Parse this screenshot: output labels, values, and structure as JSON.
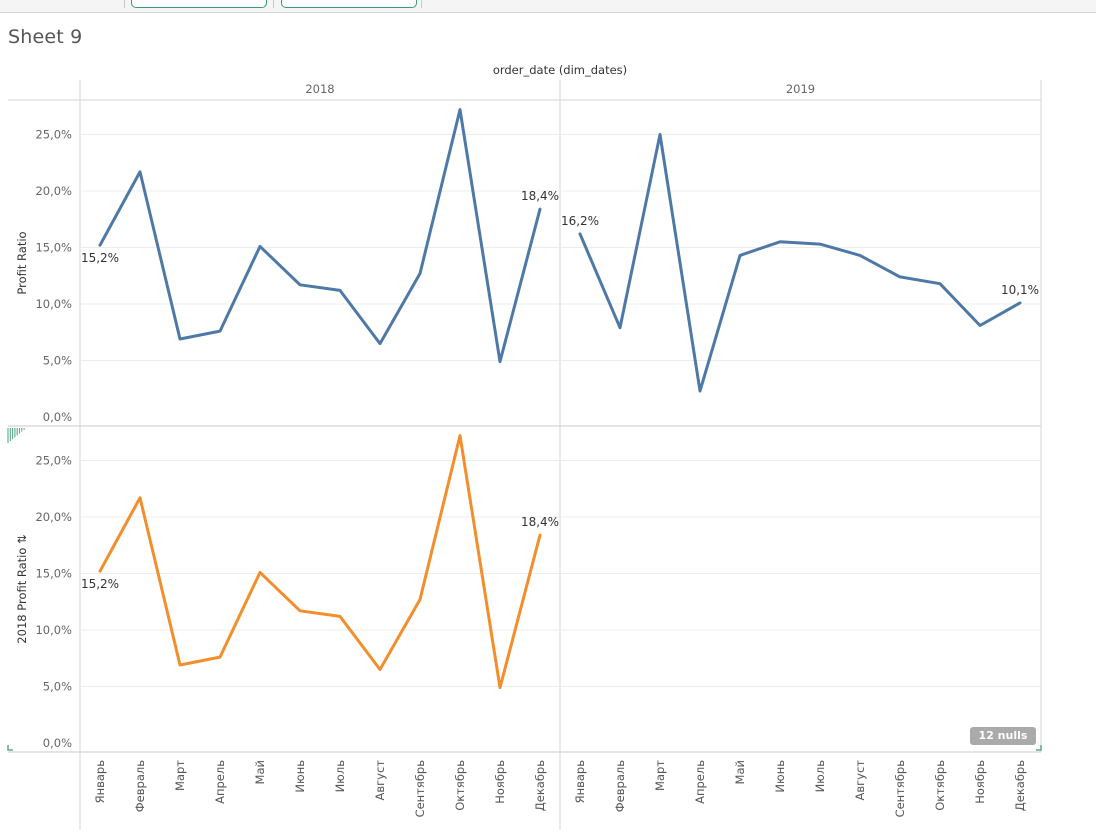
{
  "sheet_title": "Sheet 9",
  "nulls_label": "12 nulls",
  "chart_data": {
    "type": "line",
    "column_header": "order_date (dim_dates)",
    "years": [
      "2018",
      "2019"
    ],
    "months": [
      "Январь",
      "Февраль",
      "Март",
      "Апрель",
      "Май",
      "Июнь",
      "Июль",
      "Август",
      "Сентябрь",
      "Октябрь",
      "Ноябрь",
      "Декабрь"
    ],
    "ylim": [
      0,
      0.28
    ],
    "yticks": [
      0,
      0.05,
      0.1,
      0.15,
      0.2,
      0.25
    ],
    "ytick_labels": [
      "0,0%",
      "5,0%",
      "10,0%",
      "15,0%",
      "20,0%",
      "25,0%"
    ],
    "grid": true,
    "panes": [
      {
        "ylabel": "Profit Ratio",
        "ylabel_icon": "",
        "color": "#4e79a7",
        "series": {
          "2018": [
            0.152,
            0.217,
            0.069,
            0.076,
            0.151,
            0.117,
            0.112,
            0.065,
            0.127,
            0.272,
            0.049,
            0.184
          ],
          "2019": [
            0.162,
            0.079,
            0.25,
            0.023,
            0.143,
            0.155,
            0.153,
            0.143,
            0.124,
            0.118,
            0.081,
            0.101
          ]
        },
        "labels": [
          {
            "year": "2018",
            "month_index": 0,
            "text": "15,2%",
            "pos": "below"
          },
          {
            "year": "2018",
            "month_index": 11,
            "text": "18,4%",
            "pos": "above"
          },
          {
            "year": "2019",
            "month_index": 0,
            "text": "16,2%",
            "pos": "above"
          },
          {
            "year": "2019",
            "month_index": 11,
            "text": "10,1%",
            "pos": "above"
          }
        ]
      },
      {
        "ylabel": "2018 Profit Ratio",
        "ylabel_icon": "⇅",
        "color": "#f28e2b",
        "series": {
          "2018": [
            0.152,
            0.217,
            0.069,
            0.076,
            0.151,
            0.117,
            0.112,
            0.065,
            0.127,
            0.272,
            0.049,
            0.184
          ]
        },
        "labels": [
          {
            "year": "2018",
            "month_index": 0,
            "text": "15,2%",
            "pos": "below"
          },
          {
            "year": "2018",
            "month_index": 11,
            "text": "18,4%",
            "pos": "above"
          }
        ]
      }
    ]
  }
}
